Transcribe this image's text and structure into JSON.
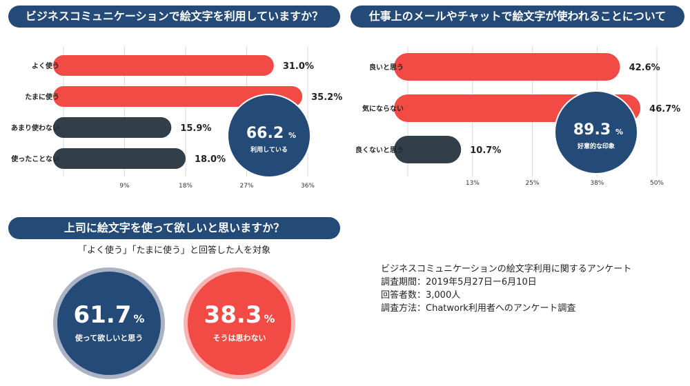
{
  "colors": {
    "navy": "#244a77",
    "red": "#f24b46",
    "dark": "#333f48",
    "grid": "#d9d9d9",
    "light_navy_ring": "#a9b3c4",
    "light_red_ring": "#f6b5b2"
  },
  "chart_data": [
    {
      "type": "bar",
      "orientation": "horizontal",
      "title": "ビジネスコミュニケーションで絵文字を利用していますか？",
      "categories": [
        "よく使う",
        "たまに使う",
        "あまり使わない",
        "使ったことない"
      ],
      "values": [
        31.0,
        35.2,
        15.9,
        18.0
      ],
      "value_labels": [
        "31.0%",
        "35.2%",
        "15.9%",
        "18.0%"
      ],
      "bar_colors": [
        "red",
        "red",
        "dark",
        "dark"
      ],
      "xlim": [
        0,
        36
      ],
      "ticks": [
        9,
        18,
        27,
        36
      ],
      "tick_labels": [
        "9%",
        "18%",
        "27%",
        "36%"
      ],
      "grid": true,
      "callout": {
        "value": "66.2",
        "unit": "%",
        "caption": "利用している"
      }
    },
    {
      "type": "bar",
      "orientation": "horizontal",
      "title": "仕事上のメールやチャットで絵文字が使われることについて",
      "categories": [
        "良いと思う",
        "気にならない",
        "良くないと思う"
      ],
      "values": [
        42.6,
        46.7,
        10.7
      ],
      "value_labels": [
        "42.6%",
        "46.7%",
        "10.7%"
      ],
      "bar_colors": [
        "red",
        "red",
        "dark"
      ],
      "xlim": [
        0,
        50
      ],
      "ticks": [
        13,
        25,
        38,
        50
      ],
      "tick_labels": [
        "13%",
        "25%",
        "38%",
        "50%"
      ],
      "grid": true,
      "callout": {
        "value": "89.3",
        "unit": "%",
        "caption": "好意的な印象"
      }
    },
    {
      "type": "pie",
      "title": "上司に絵文字を使って欲しいと思いますか？",
      "subtitle": "「よく使う」「たまに使う」と回答した人を対象",
      "slices": [
        {
          "label": "使って欲しいと思う",
          "value": 61.7,
          "unit": "%"
        },
        {
          "label": "そうは思わない",
          "value": 38.3,
          "unit": "%"
        }
      ]
    }
  ],
  "survey_info": {
    "line1": "ビジネスコミュニケーションの絵文字利用に関するアンケート",
    "line2": "調査期間：2019年5月27日ー6月10日",
    "line3": "回答者数：3,000人",
    "line4": "調査方法：Chatwork利用者へのアンケート調査"
  }
}
